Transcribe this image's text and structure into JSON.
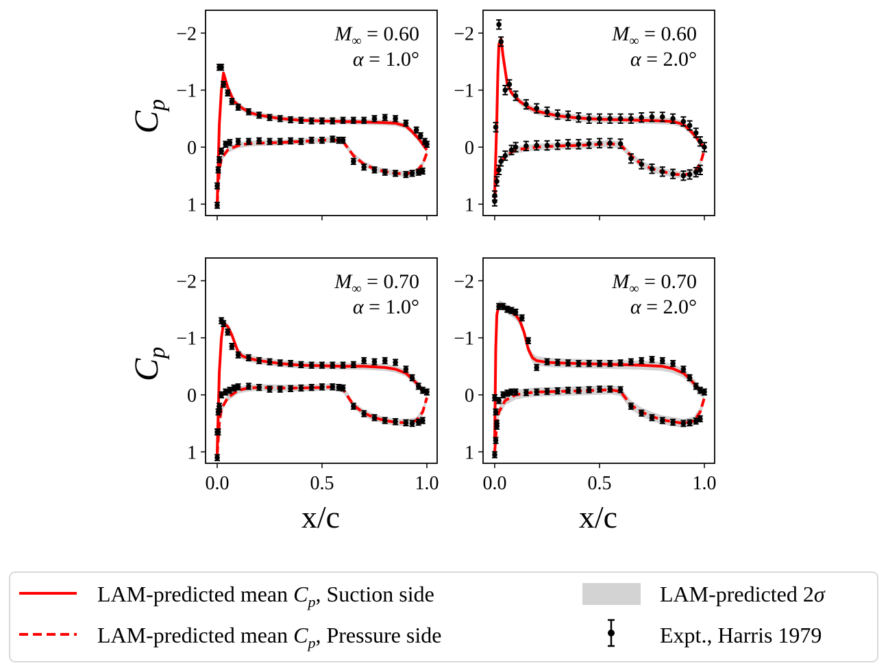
{
  "colors": {
    "mean_line": "#ff0000",
    "band": "#d3d3d3",
    "expt": "#000000",
    "frame": "#000000"
  },
  "legend": {
    "suction_label": "LAM-predicted mean C_p, Suction side",
    "suction_prefix": "LAM-predicted mean ",
    "suction_suffix": ", Suction side",
    "pressure_label": "LAM-predicted mean C_p, Pressure side",
    "pressure_prefix": "LAM-predicted mean ",
    "pressure_suffix": ", Pressure side",
    "band_label": "LAM-predicted 2σ",
    "band_prefix": "LAM-predicted 2",
    "band_symbol": "σ",
    "expt_label": "Expt., Harris 1979"
  },
  "chart_data": [
    {
      "type": "line",
      "title": "",
      "xlabel": "",
      "ylabel": "C_p",
      "ylabel_main": "C",
      "ylabel_sub": "p",
      "mach": "0.60",
      "alpha": "1.0",
      "ann_m_sym": "M",
      "ann_m_sub": "∞",
      "ann_m_eq": " = 0.60",
      "ann_a_sym": "α",
      "ann_a_eq": " = 1.0°",
      "xlim": [
        0,
        1
      ],
      "ylim": [
        1.2,
        -2.4
      ],
      "y_inverted": true,
      "yticks": [
        -2,
        -1,
        0,
        1
      ],
      "ytick_labels": [
        "−2",
        "−1",
        "0",
        "1"
      ],
      "xticks": [
        0,
        0.5,
        1
      ],
      "xtick_labels": [],
      "suction": {
        "x": [
          0.0,
          0.01,
          0.02,
          0.03,
          0.05,
          0.08,
          0.12,
          0.16,
          0.2,
          0.3,
          0.4,
          0.5,
          0.6,
          0.7,
          0.8,
          0.85,
          0.9,
          0.93,
          0.96,
          0.98,
          1.0
        ],
        "y": [
          1.0,
          -0.4,
          -1.0,
          -1.3,
          -1.05,
          -0.8,
          -0.68,
          -0.6,
          -0.56,
          -0.5,
          -0.47,
          -0.46,
          -0.45,
          -0.44,
          -0.43,
          -0.42,
          -0.37,
          -0.27,
          -0.15,
          -0.05,
          0.05
        ]
      },
      "pressure": {
        "x": [
          0.0,
          0.01,
          0.02,
          0.05,
          0.1,
          0.15,
          0.2,
          0.3,
          0.4,
          0.5,
          0.55,
          0.6,
          0.65,
          0.7,
          0.75,
          0.8,
          0.85,
          0.9,
          0.95,
          0.98,
          1.0
        ],
        "y": [
          1.0,
          0.4,
          0.2,
          0.05,
          -0.03,
          -0.06,
          -0.07,
          -0.08,
          -0.1,
          -0.12,
          -0.13,
          -0.1,
          0.15,
          0.3,
          0.38,
          0.43,
          0.46,
          0.47,
          0.43,
          0.3,
          0.1
        ]
      },
      "band_halfwidth": 0.05,
      "expt": {
        "x": [
          0.0,
          0.0,
          0.005,
          0.01,
          0.02,
          0.03,
          0.05,
          0.07,
          0.1,
          0.15,
          0.2,
          0.25,
          0.3,
          0.35,
          0.4,
          0.45,
          0.5,
          0.55,
          0.6,
          0.65,
          0.7,
          0.75,
          0.8,
          0.85,
          0.9,
          0.95,
          0.97,
          0.99,
          1.0,
          0.01,
          0.02,
          0.04,
          0.06,
          0.1,
          0.15,
          0.2,
          0.25,
          0.3,
          0.35,
          0.4,
          0.45,
          0.5,
          0.55,
          0.58,
          0.6,
          0.65,
          0.7,
          0.75,
          0.8,
          0.85,
          0.9,
          0.93,
          0.96,
          0.98
        ],
        "y": [
          1.02,
          0.68,
          0.4,
          -1.4,
          -1.4,
          -1.1,
          -0.95,
          -0.8,
          -0.7,
          -0.62,
          -0.56,
          -0.52,
          -0.5,
          -0.48,
          -0.47,
          -0.46,
          -0.46,
          -0.46,
          -0.47,
          -0.47,
          -0.47,
          -0.5,
          -0.52,
          -0.5,
          -0.42,
          -0.3,
          -0.2,
          -0.1,
          -0.05,
          0.22,
          0.07,
          -0.05,
          -0.08,
          -0.1,
          -0.1,
          -0.11,
          -0.1,
          -0.1,
          -0.11,
          -0.1,
          -0.12,
          -0.12,
          -0.14,
          -0.12,
          -0.12,
          0.25,
          0.35,
          0.4,
          0.44,
          0.46,
          0.48,
          0.46,
          0.44,
          0.42
        ],
        "err": 0.05
      }
    },
    {
      "type": "line",
      "title": "",
      "xlabel": "",
      "ylabel": "",
      "mach": "0.60",
      "alpha": "2.0",
      "ann_m_sym": "M",
      "ann_m_sub": "∞",
      "ann_m_eq": " = 0.60",
      "ann_a_sym": "α",
      "ann_a_eq": " = 2.0°",
      "xlim": [
        0,
        1
      ],
      "ylim": [
        1.2,
        -2.4
      ],
      "y_inverted": true,
      "yticks": [
        -2,
        -1,
        0,
        1
      ],
      "ytick_labels": [
        "−2",
        "−1",
        "0",
        "1"
      ],
      "xticks": [
        0,
        0.5,
        1
      ],
      "xtick_labels": [],
      "suction": {
        "x": [
          0.0,
          0.01,
          0.015,
          0.02,
          0.03,
          0.04,
          0.06,
          0.08,
          0.12,
          0.16,
          0.2,
          0.3,
          0.4,
          0.5,
          0.6,
          0.7,
          0.8,
          0.85,
          0.9,
          0.93,
          0.96,
          0.98,
          1.0
        ],
        "y": [
          0.8,
          -0.5,
          -1.3,
          -1.8,
          -1.9,
          -1.6,
          -1.1,
          -0.95,
          -0.8,
          -0.7,
          -0.63,
          -0.55,
          -0.51,
          -0.49,
          -0.48,
          -0.47,
          -0.46,
          -0.45,
          -0.4,
          -0.3,
          -0.18,
          -0.07,
          0.0
        ]
      },
      "pressure": {
        "x": [
          0.0,
          0.01,
          0.02,
          0.05,
          0.1,
          0.15,
          0.2,
          0.3,
          0.4,
          0.5,
          0.55,
          0.6,
          0.65,
          0.7,
          0.75,
          0.8,
          0.85,
          0.9,
          0.95,
          0.98,
          1.0
        ],
        "y": [
          0.9,
          0.5,
          0.35,
          0.15,
          0.05,
          0.02,
          0.0,
          -0.02,
          -0.03,
          -0.05,
          -0.06,
          -0.04,
          0.15,
          0.3,
          0.38,
          0.43,
          0.47,
          0.49,
          0.45,
          0.3,
          0.05
        ]
      },
      "band_halfwidth": 0.06,
      "expt": {
        "x": [
          0.0,
          0.0,
          0.005,
          0.02,
          0.03,
          0.05,
          0.07,
          0.1,
          0.15,
          0.2,
          0.25,
          0.3,
          0.35,
          0.4,
          0.45,
          0.5,
          0.55,
          0.6,
          0.65,
          0.7,
          0.75,
          0.8,
          0.85,
          0.9,
          0.93,
          0.96,
          0.98,
          1.0,
          0.01,
          0.02,
          0.03,
          0.05,
          0.08,
          0.1,
          0.15,
          0.2,
          0.25,
          0.3,
          0.35,
          0.4,
          0.45,
          0.5,
          0.55,
          0.6,
          0.65,
          0.7,
          0.75,
          0.8,
          0.85,
          0.9,
          0.93,
          0.96,
          0.98
        ],
        "y": [
          0.95,
          0.85,
          -0.35,
          -2.15,
          -1.85,
          -1.0,
          -1.1,
          -0.9,
          -0.75,
          -0.68,
          -0.62,
          -0.57,
          -0.55,
          -0.52,
          -0.5,
          -0.5,
          -0.5,
          -0.5,
          -0.5,
          -0.52,
          -0.53,
          -0.53,
          -0.5,
          -0.45,
          -0.38,
          -0.25,
          -0.1,
          0.0,
          0.6,
          0.4,
          0.25,
          0.15,
          0.05,
          0.0,
          -0.02,
          -0.03,
          -0.03,
          -0.04,
          -0.05,
          -0.05,
          -0.06,
          -0.07,
          -0.07,
          -0.06,
          0.2,
          0.3,
          0.38,
          0.43,
          0.47,
          0.5,
          0.48,
          0.44,
          0.4
        ],
        "err": 0.08
      }
    },
    {
      "type": "line",
      "title": "",
      "xlabel": "x/c",
      "ylabel": "C_p",
      "ylabel_main": "C",
      "ylabel_sub": "p",
      "mach": "0.70",
      "alpha": "1.0",
      "ann_m_sym": "M",
      "ann_m_sub": "∞",
      "ann_m_eq": " = 0.70",
      "ann_a_sym": "α",
      "ann_a_eq": " = 1.0°",
      "xlim": [
        0,
        1
      ],
      "ylim": [
        1.2,
        -2.4
      ],
      "y_inverted": true,
      "yticks": [
        -2,
        -1,
        0,
        1
      ],
      "ytick_labels": [
        "−2",
        "−1",
        "0",
        "1"
      ],
      "xticks": [
        0,
        0.5,
        1
      ],
      "xtick_labels": [
        "0.0",
        "0.5",
        "1.0"
      ],
      "suction": {
        "x": [
          0.0,
          0.01,
          0.02,
          0.03,
          0.05,
          0.07,
          0.09,
          0.1,
          0.12,
          0.15,
          0.2,
          0.3,
          0.4,
          0.5,
          0.6,
          0.7,
          0.8,
          0.85,
          0.9,
          0.93,
          0.96,
          0.98,
          1.0
        ],
        "y": [
          1.0,
          -0.4,
          -1.0,
          -1.25,
          -1.2,
          -1.05,
          -0.85,
          -0.75,
          -0.68,
          -0.64,
          -0.6,
          -0.55,
          -0.52,
          -0.51,
          -0.5,
          -0.5,
          -0.48,
          -0.45,
          -0.38,
          -0.28,
          -0.17,
          -0.08,
          -0.04
        ]
      },
      "pressure": {
        "x": [
          0.0,
          0.01,
          0.02,
          0.05,
          0.1,
          0.15,
          0.2,
          0.3,
          0.4,
          0.5,
          0.55,
          0.6,
          0.65,
          0.7,
          0.75,
          0.8,
          0.85,
          0.9,
          0.95,
          0.98,
          1.0
        ],
        "y": [
          1.05,
          0.5,
          0.25,
          0.05,
          -0.08,
          -0.12,
          -0.13,
          -0.12,
          -0.12,
          -0.13,
          -0.14,
          -0.1,
          0.18,
          0.32,
          0.4,
          0.45,
          0.48,
          0.49,
          0.45,
          0.3,
          0.05
        ]
      },
      "band_halfwidth": 0.06,
      "expt": {
        "x": [
          0.0,
          0.005,
          0.01,
          0.02,
          0.03,
          0.05,
          0.07,
          0.1,
          0.15,
          0.2,
          0.25,
          0.3,
          0.35,
          0.4,
          0.45,
          0.5,
          0.55,
          0.6,
          0.65,
          0.7,
          0.75,
          0.8,
          0.85,
          0.9,
          0.93,
          0.96,
          0.98,
          1.0,
          0.0,
          0.005,
          0.01,
          0.02,
          0.04,
          0.06,
          0.08,
          0.1,
          0.15,
          0.2,
          0.25,
          0.3,
          0.35,
          0.4,
          0.45,
          0.5,
          0.55,
          0.58,
          0.6,
          0.65,
          0.7,
          0.75,
          0.8,
          0.85,
          0.9,
          0.93,
          0.96,
          0.98
        ],
        "y": [
          1.1,
          0.65,
          0.25,
          -1.3,
          -1.25,
          -1.1,
          -0.85,
          -0.7,
          -0.65,
          -0.6,
          -0.58,
          -0.56,
          -0.55,
          -0.53,
          -0.52,
          -0.52,
          -0.52,
          -0.52,
          -0.53,
          -0.6,
          -0.58,
          -0.6,
          -0.57,
          -0.45,
          -0.3,
          -0.15,
          -0.08,
          -0.05,
          0.65,
          0.3,
          0.2,
          0.0,
          -0.05,
          -0.08,
          -0.12,
          -0.14,
          -0.15,
          -0.13,
          -0.1,
          -0.1,
          -0.11,
          -0.12,
          -0.13,
          -0.14,
          -0.14,
          -0.13,
          -0.12,
          0.2,
          0.33,
          0.4,
          0.45,
          0.47,
          0.49,
          0.5,
          0.48,
          0.45
        ],
        "err": 0.05
      }
    },
    {
      "type": "line",
      "title": "",
      "xlabel": "x/c",
      "ylabel": "",
      "mach": "0.70",
      "alpha": "2.0",
      "ann_m_sym": "M",
      "ann_m_sub": "∞",
      "ann_m_eq": " = 0.70",
      "ann_a_sym": "α",
      "ann_a_eq": " = 2.0°",
      "xlim": [
        0,
        1
      ],
      "ylim": [
        1.2,
        -2.4
      ],
      "y_inverted": true,
      "yticks": [
        -2,
        -1,
        0,
        1
      ],
      "ytick_labels": [
        "−2",
        "−1",
        "0",
        "1"
      ],
      "xticks": [
        0,
        0.5,
        1
      ],
      "xtick_labels": [
        "0.0",
        "0.5",
        "1.0"
      ],
      "suction": {
        "x": [
          0.0,
          0.005,
          0.01,
          0.02,
          0.04,
          0.06,
          0.08,
          0.1,
          0.12,
          0.14,
          0.16,
          0.18,
          0.2,
          0.25,
          0.3,
          0.4,
          0.5,
          0.6,
          0.7,
          0.8,
          0.85,
          0.9,
          0.93,
          0.96,
          0.98,
          1.0
        ],
        "y": [
          0.8,
          -0.8,
          -1.4,
          -1.58,
          -1.55,
          -1.5,
          -1.45,
          -1.4,
          -1.3,
          -1.1,
          -0.8,
          -0.65,
          -0.6,
          -0.57,
          -0.56,
          -0.55,
          -0.54,
          -0.53,
          -0.52,
          -0.5,
          -0.46,
          -0.38,
          -0.28,
          -0.16,
          -0.06,
          -0.02
        ]
      },
      "pressure": {
        "x": [
          0.0,
          0.01,
          0.02,
          0.05,
          0.1,
          0.15,
          0.2,
          0.3,
          0.4,
          0.5,
          0.55,
          0.6,
          0.65,
          0.7,
          0.75,
          0.8,
          0.85,
          0.9,
          0.95,
          0.98,
          1.0
        ],
        "y": [
          1.0,
          0.5,
          0.3,
          0.1,
          0.0,
          -0.03,
          -0.05,
          -0.06,
          -0.07,
          -0.08,
          -0.09,
          -0.06,
          0.18,
          0.3,
          0.38,
          0.44,
          0.47,
          0.5,
          0.46,
          0.3,
          0.05
        ]
      },
      "band_halfwidth": 0.08,
      "expt": {
        "x": [
          0.0,
          0.005,
          0.01,
          0.02,
          0.04,
          0.06,
          0.08,
          0.1,
          0.13,
          0.16,
          0.2,
          0.25,
          0.3,
          0.35,
          0.4,
          0.45,
          0.5,
          0.55,
          0.6,
          0.65,
          0.7,
          0.75,
          0.8,
          0.85,
          0.9,
          0.93,
          0.96,
          0.98,
          1.0,
          0.0,
          0.005,
          0.01,
          0.02,
          0.04,
          0.06,
          0.08,
          0.1,
          0.15,
          0.2,
          0.25,
          0.3,
          0.35,
          0.4,
          0.45,
          0.5,
          0.55,
          0.6,
          0.65,
          0.7,
          0.75,
          0.8,
          0.85,
          0.9,
          0.93,
          0.96,
          0.98
        ],
        "y": [
          1.05,
          0.8,
          0.55,
          -1.55,
          -1.55,
          -1.5,
          -1.48,
          -1.45,
          -1.35,
          -0.95,
          -0.48,
          -0.58,
          -0.57,
          -0.56,
          -0.55,
          -0.55,
          -0.55,
          -0.55,
          -0.56,
          -0.58,
          -0.6,
          -0.62,
          -0.6,
          -0.55,
          -0.45,
          -0.3,
          -0.15,
          -0.08,
          -0.05,
          0.05,
          0.3,
          0.5,
          0.1,
          0.0,
          -0.03,
          -0.05,
          -0.05,
          -0.04,
          -0.05,
          -0.06,
          -0.07,
          -0.08,
          -0.08,
          -0.09,
          -0.1,
          -0.1,
          -0.09,
          0.2,
          0.32,
          0.4,
          0.45,
          0.48,
          0.5,
          0.49,
          0.46,
          0.42
        ],
        "err": 0.05
      }
    }
  ]
}
